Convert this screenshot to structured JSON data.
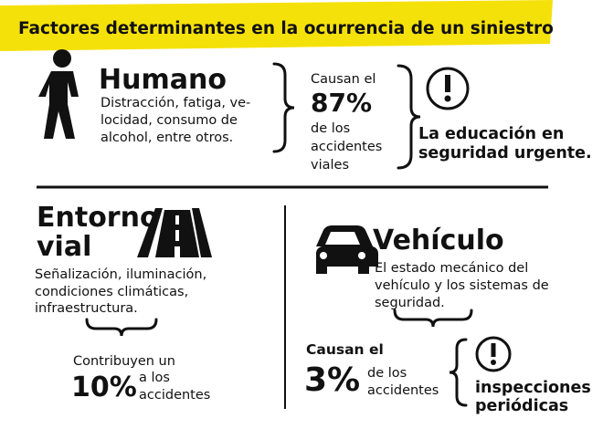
{
  "title": "Factores determinantes en la ocurrencia de un siniestro",
  "human": {
    "heading": "Humano",
    "description": [
      "Distracción, fatiga, ve-",
      "locidad, consumo de",
      "alcohol, entre otros."
    ],
    "stat": {
      "lead": "Causan el",
      "value": "87%",
      "trail": [
        "de los",
        "accidentes",
        "viales"
      ]
    },
    "conclusion": [
      "La educación en",
      "seguridad urgente."
    ]
  },
  "environment": {
    "heading": [
      "Entorno",
      "vial"
    ],
    "description": [
      "Señalización, iluminación,",
      "condiciones climáticas,",
      "infraestructura."
    ],
    "stat": {
      "lead": "Contribuyen un",
      "value": "10%",
      "trail": [
        "a los",
        "accidentes"
      ]
    }
  },
  "vehicle": {
    "heading": "Vehículo",
    "description": [
      "El estado mecánico del",
      "vehículo y los sistemas de",
      "seguridad."
    ],
    "stat": {
      "lead": "Causan el",
      "value": "3%",
      "trail": [
        "de los",
        "accidentes"
      ]
    },
    "conclusion": [
      "inspecciones",
      "periódicas"
    ]
  }
}
